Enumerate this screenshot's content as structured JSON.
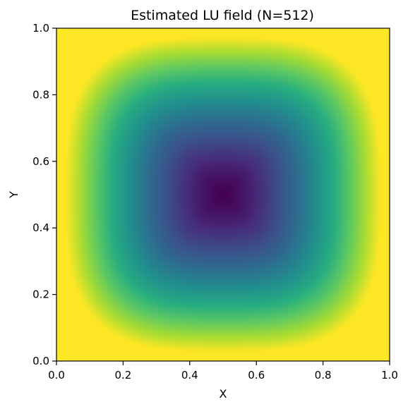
{
  "chart_data": {
    "type": "heatmap",
    "title": "Estimated LU field (N=512)",
    "xlabel": "X",
    "ylabel": "Y",
    "xlim": [
      0.0,
      1.0
    ],
    "ylim": [
      0.0,
      1.0
    ],
    "grid_resolution": 512,
    "x_ticks": [
      {
        "value": 0.0,
        "label": "0.0"
      },
      {
        "value": 0.2,
        "label": "0.2"
      },
      {
        "value": 0.4,
        "label": "0.4"
      },
      {
        "value": 0.6,
        "label": "0.6"
      },
      {
        "value": 0.8,
        "label": "0.8"
      },
      {
        "value": 1.0,
        "label": "1.0"
      }
    ],
    "y_ticks": [
      {
        "value": 0.0,
        "label": "0.0"
      },
      {
        "value": 0.2,
        "label": "0.2"
      },
      {
        "value": 0.4,
        "label": "0.4"
      },
      {
        "value": 0.6,
        "label": "0.6"
      },
      {
        "value": 0.8,
        "label": "0.8"
      },
      {
        "value": 1.0,
        "label": "1.0"
      }
    ],
    "colormap": "viridis",
    "field_description": "minimum at center (0.5, 0.5) rising toward the square boundary",
    "field_center": [
      0.5,
      0.5
    ],
    "grid": false,
    "colorbar": false
  }
}
